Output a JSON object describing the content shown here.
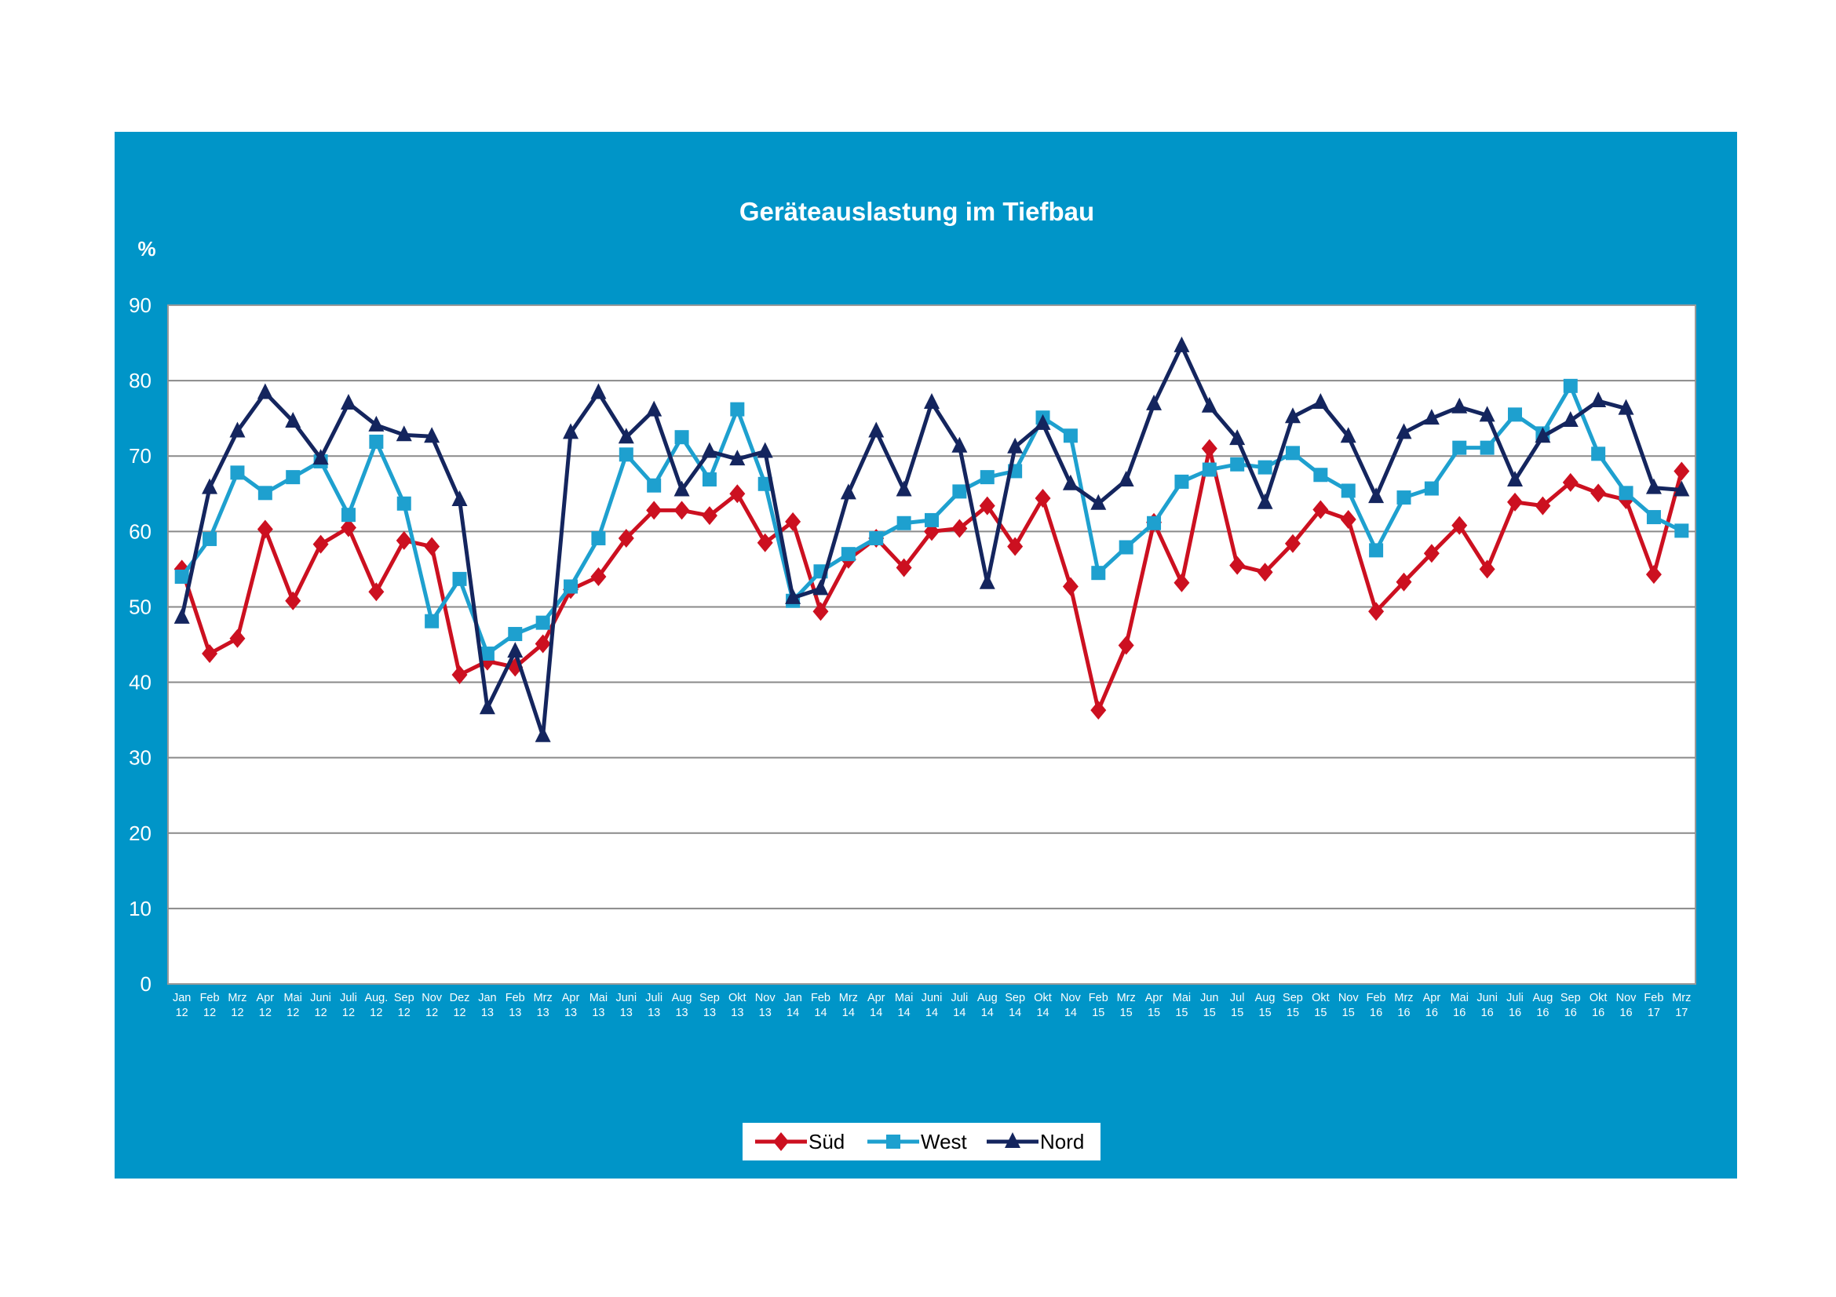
{
  "chart_data": {
    "type": "line",
    "title": "Geräteauslastung im Tiefbau",
    "ylabel": "%",
    "xlabel": "",
    "ylim": [
      0,
      90
    ],
    "yticks": [
      0,
      10,
      20,
      30,
      40,
      50,
      60,
      70,
      80,
      90
    ],
    "grid": "horizontal",
    "legend_position": "bottom",
    "categories": [
      [
        "Jan",
        "12"
      ],
      [
        "Feb",
        "12"
      ],
      [
        "Mrz",
        "12"
      ],
      [
        "Apr",
        "12"
      ],
      [
        "Mai",
        "12"
      ],
      [
        "Juni",
        "12"
      ],
      [
        "Juli",
        "12"
      ],
      [
        "Aug.",
        "12"
      ],
      [
        "Sep",
        "12"
      ],
      [
        "Nov",
        "12"
      ],
      [
        "Dez",
        "12"
      ],
      [
        "Jan",
        "13"
      ],
      [
        "Feb",
        "13"
      ],
      [
        "Mrz",
        "13"
      ],
      [
        "Apr",
        "13"
      ],
      [
        "Mai",
        "13"
      ],
      [
        "Juni",
        "13"
      ],
      [
        "Juli",
        "13"
      ],
      [
        "Aug",
        "13"
      ],
      [
        "Sep",
        "13"
      ],
      [
        "Okt",
        "13"
      ],
      [
        "Nov",
        "13"
      ],
      [
        "Jan",
        "14"
      ],
      [
        "Feb",
        "14"
      ],
      [
        "Mrz",
        "14"
      ],
      [
        "Apr",
        "14"
      ],
      [
        "Mai",
        "14"
      ],
      [
        "Juni",
        "14"
      ],
      [
        "Juli",
        "14"
      ],
      [
        "Aug",
        "14"
      ],
      [
        "Sep",
        "14"
      ],
      [
        "Okt",
        "14"
      ],
      [
        "Nov",
        "14"
      ],
      [
        "Feb",
        "15"
      ],
      [
        "Mrz",
        "15"
      ],
      [
        "Apr",
        "15"
      ],
      [
        "Mai",
        "15"
      ],
      [
        "Jun",
        "15"
      ],
      [
        "Jul",
        "15"
      ],
      [
        "Aug",
        "15"
      ],
      [
        "Sep",
        "15"
      ],
      [
        "Okt",
        "15"
      ],
      [
        "Nov",
        "15"
      ],
      [
        "Feb",
        "16"
      ],
      [
        "Mrz",
        "16"
      ],
      [
        "Apr",
        "16"
      ],
      [
        "Mai",
        "16"
      ],
      [
        "Juni",
        "16"
      ],
      [
        "Juli",
        "16"
      ],
      [
        "Aug",
        "16"
      ],
      [
        "Sep",
        "16"
      ],
      [
        "Okt",
        "16"
      ],
      [
        "Nov",
        "16"
      ],
      [
        "Feb",
        "17"
      ],
      [
        "Mrz",
        "17"
      ]
    ],
    "series": [
      {
        "name": "Süd",
        "color": "#cc1020",
        "marker": "diamond",
        "values": [
          55,
          43.8,
          45.8,
          60.3,
          50.8,
          58.3,
          60.5,
          52,
          58.8,
          58,
          41,
          42.8,
          42,
          45.1,
          52.3,
          54,
          59.1,
          62.8,
          62.8,
          62.1,
          65,
          58.5,
          61.3,
          49.4,
          56.3,
          59.1,
          55.2,
          60,
          60.4,
          63.4,
          58,
          64.4,
          52.7,
          36.3,
          44.9,
          61.2,
          53.2,
          71,
          55.5,
          54.6,
          58.4,
          62.9,
          61.6,
          49.4,
          53.3,
          57.1,
          60.8,
          55,
          63.9,
          63.4,
          66.5,
          65.1,
          64.2,
          54.3,
          68
        ]
      },
      {
        "name": "West",
        "color": "#1ea0cf",
        "marker": "square",
        "values": [
          54,
          59,
          67.8,
          65.1,
          67.2,
          69.3,
          62.2,
          71.9,
          63.7,
          48.1,
          53.7,
          43.8,
          46.4,
          47.9,
          52.7,
          59.1,
          70.2,
          66.1,
          72.5,
          66.9,
          76.2,
          66.3,
          50.8,
          54.7,
          57,
          59.1,
          61.1,
          61.5,
          65.3,
          67.2,
          68,
          75.1,
          72.7,
          54.5,
          57.9,
          61.1,
          66.6,
          68.2,
          68.9,
          68.5,
          70.4,
          67.5,
          65.4,
          57.5,
          64.5,
          65.7,
          71.1,
          71.1,
          75.5,
          73,
          79.3,
          70.3,
          65.1,
          61.9,
          60.1
        ]
      },
      {
        "name": "Nord",
        "color": "#14255e",
        "marker": "triangle",
        "values": [
          48.6,
          65.8,
          73.3,
          78.4,
          74.6,
          69.7,
          77,
          74.1,
          72.8,
          72.6,
          64.2,
          36.6,
          44.1,
          32.9,
          73.1,
          78.4,
          72.5,
          76.1,
          65.5,
          70.6,
          69.6,
          70.6,
          51.2,
          52.4,
          65.1,
          73.3,
          65.5,
          77.1,
          71.3,
          53.2,
          71.2,
          74.3,
          66.3,
          63.7,
          66.8,
          76.9,
          84.6,
          76.6,
          72.3,
          63.8,
          75.2,
          77.1,
          72.6,
          64.6,
          73.1,
          75,
          76.5,
          75.4,
          66.8,
          72.6,
          74.7,
          77.3,
          76.3,
          65.8,
          65.5
        ]
      }
    ]
  }
}
